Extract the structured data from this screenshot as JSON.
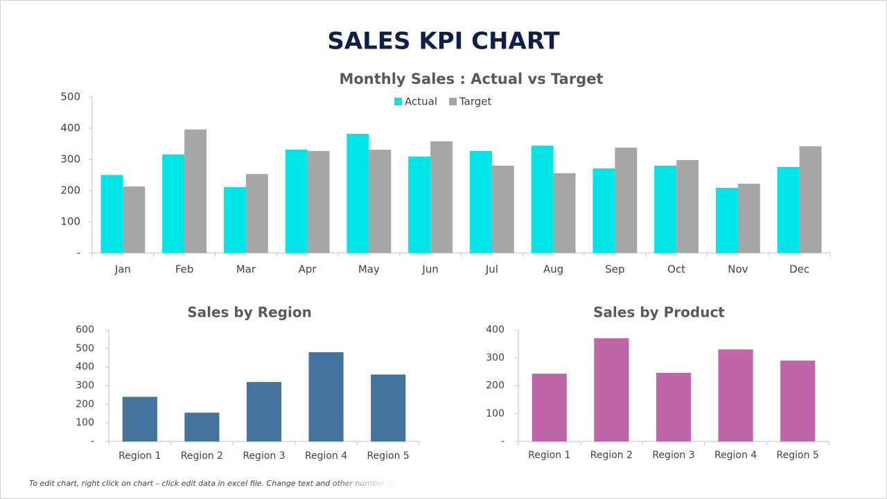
{
  "title": "SALES KPI CHART",
  "chart_data": [
    {
      "type": "bar",
      "title": "Monthly Sales : Actual vs Target",
      "categories": [
        "Jan",
        "Feb",
        "Mar",
        "Apr",
        "May",
        "Jun",
        "Jul",
        "Aug",
        "Sep",
        "Oct",
        "Nov",
        "Dec"
      ],
      "series": [
        {
          "name": "Actual",
          "color": "#00e5e8",
          "values": [
            250,
            316,
            211,
            331,
            382,
            309,
            327,
            344,
            271,
            280,
            209,
            276
          ]
        },
        {
          "name": "Target",
          "color": "#a6a6a6",
          "values": [
            213,
            396,
            253,
            327,
            331,
            358,
            280,
            256,
            338,
            298,
            222,
            342
          ]
        }
      ],
      "ylim": [
        0,
        500
      ],
      "yticks": [
        {
          "value": 0,
          "label": "-"
        },
        100,
        200,
        300,
        400,
        500
      ],
      "legend": "top",
      "grid": false
    },
    {
      "type": "bar",
      "title": "Sales by Region",
      "categories": [
        "Region 1",
        "Region 2",
        "Region 3",
        "Region 4",
        "Region 5"
      ],
      "values": [
        240,
        155,
        320,
        480,
        360
      ],
      "color": "#44749d",
      "ylim": [
        0,
        600
      ],
      "yticks": [
        {
          "value": 0,
          "label": "-"
        },
        100,
        200,
        300,
        400,
        500,
        600
      ],
      "grid": false
    },
    {
      "type": "bar",
      "title": "Sales by Product",
      "categories": [
        "Region 1",
        "Region 2",
        "Region 3",
        "Region 4",
        "Region 5"
      ],
      "values": [
        243,
        370,
        246,
        330,
        290
      ],
      "color": "#c065a8",
      "ylim": [
        0,
        400
      ],
      "yticks": [
        {
          "value": 0,
          "label": "-"
        },
        100,
        200,
        300,
        400
      ],
      "grid": false
    }
  ],
  "footer": "To edit chart, right click on chart – click edit data in excel file. Change text and other number in"
}
